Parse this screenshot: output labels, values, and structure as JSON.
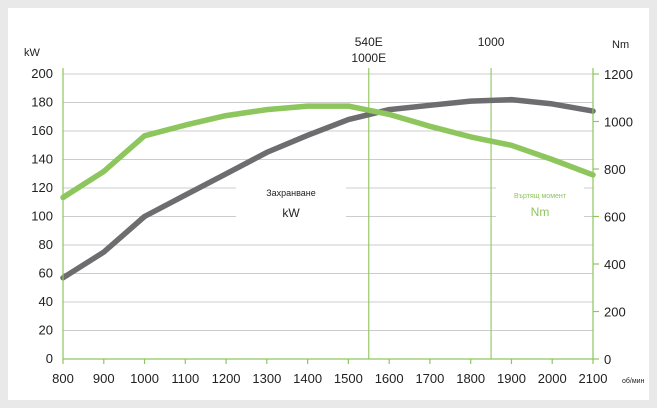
{
  "chart_data": {
    "type": "line",
    "x_unit": "об/мин",
    "x": [
      800,
      900,
      1000,
      1100,
      1200,
      1300,
      1400,
      1500,
      1600,
      1700,
      1800,
      1900,
      2000,
      2100
    ],
    "xlim": [
      800,
      2100
    ],
    "left_axis": {
      "label": "kW",
      "ylim": [
        0,
        200
      ],
      "ticks": [
        0,
        20,
        40,
        60,
        80,
        100,
        120,
        140,
        160,
        180,
        200
      ]
    },
    "right_axis": {
      "label": "Nm",
      "ylim": [
        0,
        1200
      ],
      "ticks": [
        0,
        200,
        400,
        600,
        800,
        1000,
        1200
      ]
    },
    "grid": true,
    "markers": [
      {
        "x": 1550,
        "label_line1": "540E",
        "label_line2": "1000E"
      },
      {
        "x": 1850,
        "label_line1": "1000",
        "label_line2": ""
      }
    ],
    "series": [
      {
        "name": "Захранване",
        "unit": "kW",
        "axis": "left",
        "color": "#6d6d70",
        "values": [
          57,
          75,
          100,
          115,
          130,
          145,
          157,
          168,
          175,
          178,
          181,
          182,
          179,
          174
        ]
      },
      {
        "name": "Въртящ момент",
        "unit": "Nm",
        "axis": "right",
        "color": "#8dc65c",
        "values": [
          680,
          790,
          940,
          985,
          1025,
          1050,
          1065,
          1065,
          1030,
          980,
          935,
          900,
          840,
          775
        ]
      }
    ],
    "annotations": [
      {
        "series": 0,
        "line1": "Захранване",
        "line2": "kW"
      },
      {
        "series": 1,
        "line1": "Въртящ момент",
        "line2": "Nm"
      }
    ]
  }
}
